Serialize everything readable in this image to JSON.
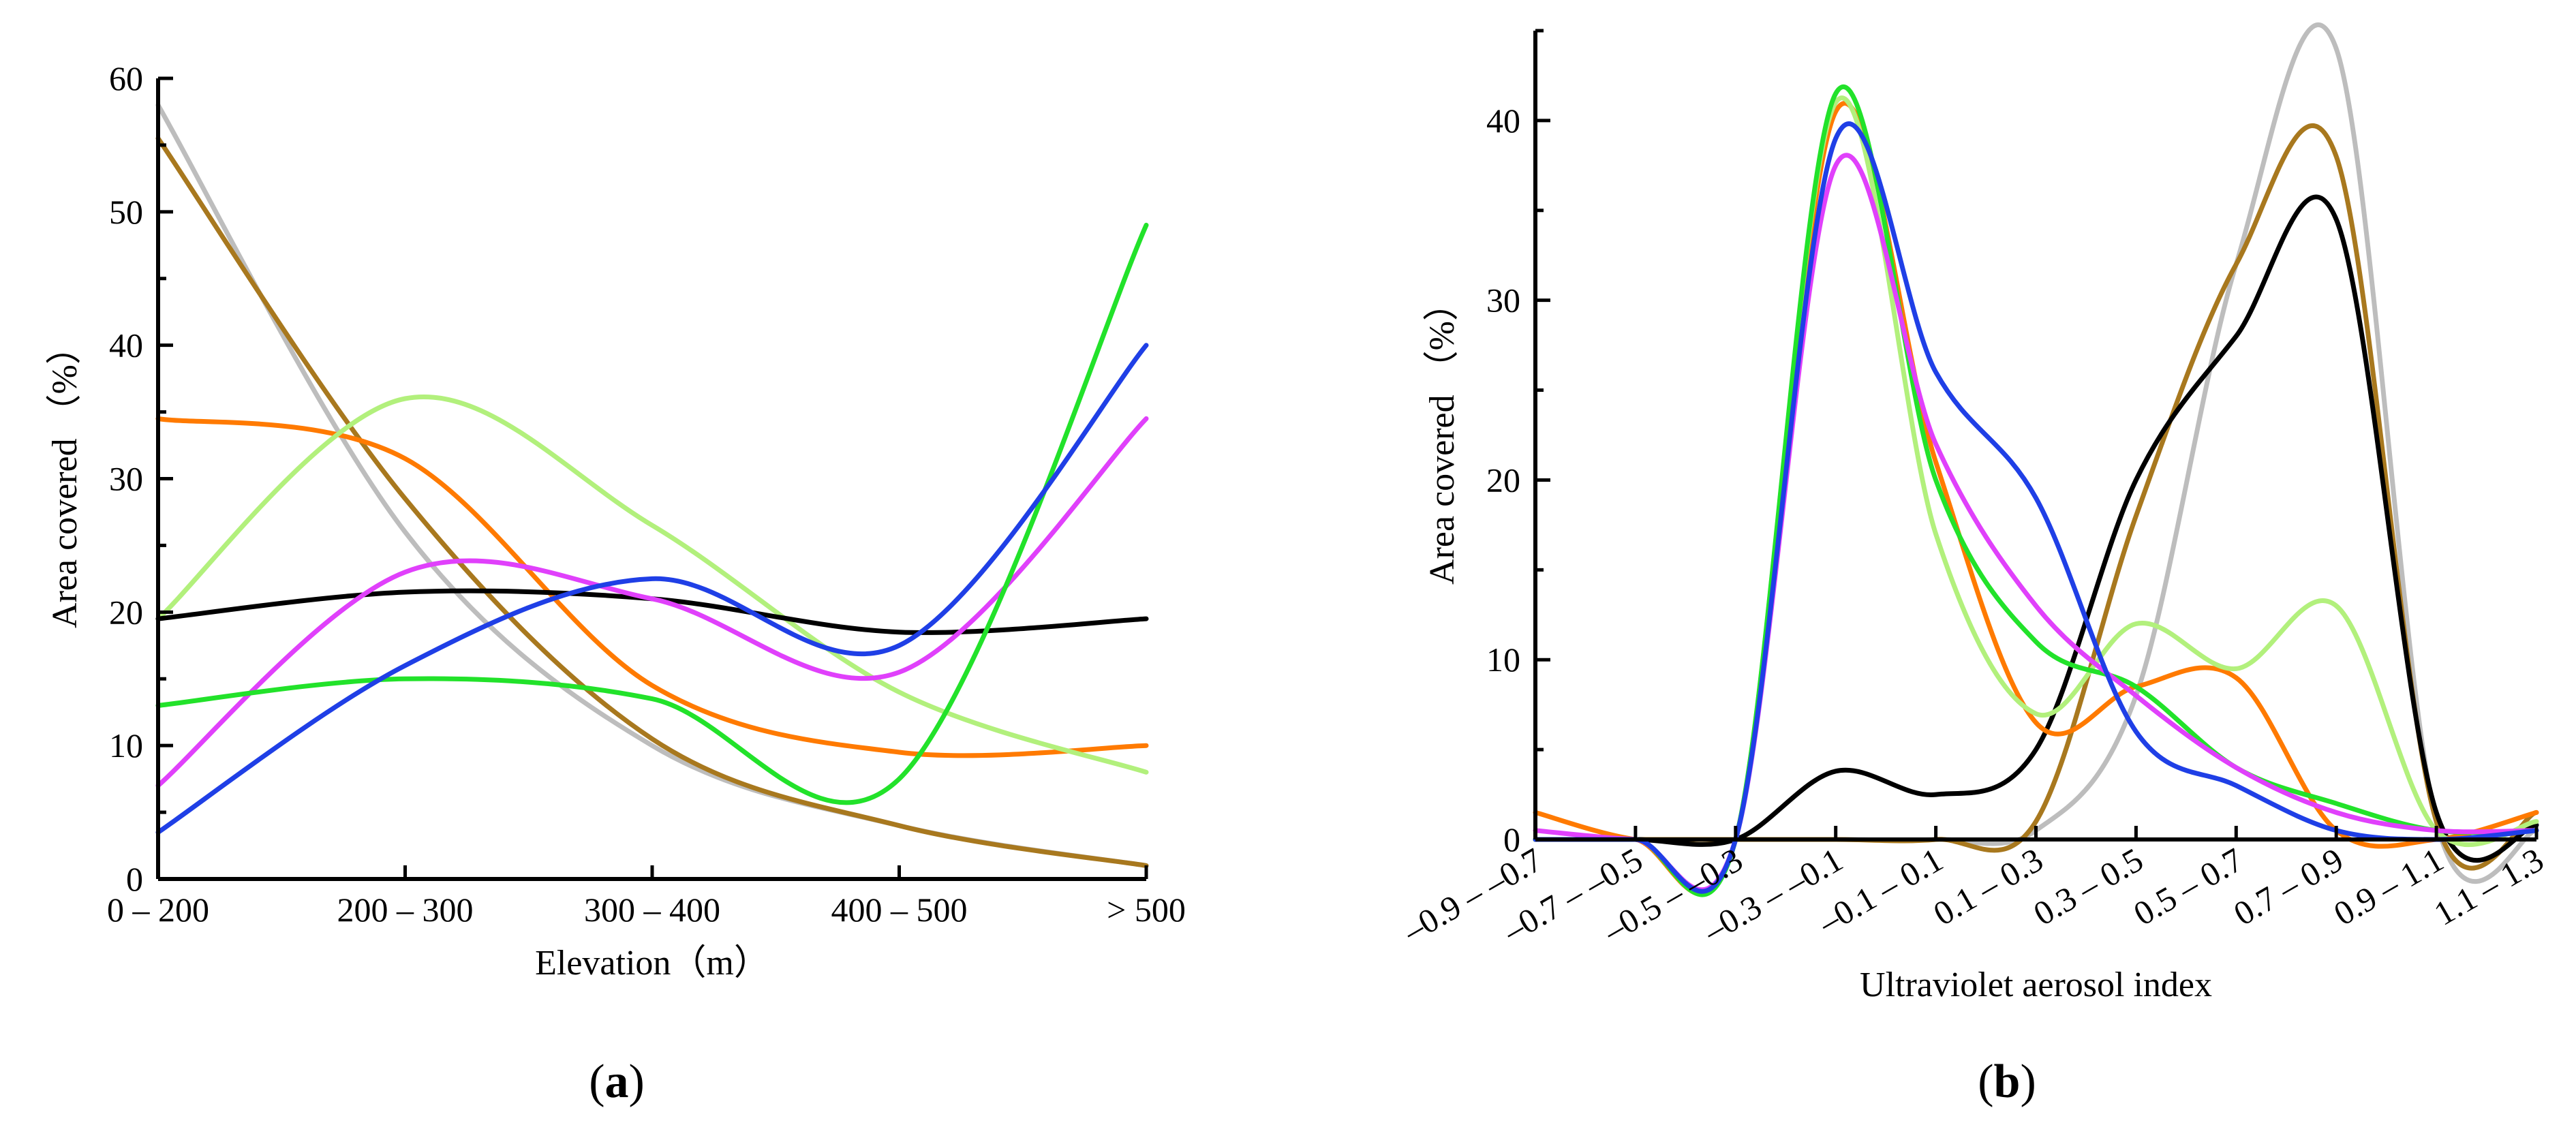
{
  "chart_data": [
    {
      "type": "line",
      "panel": "a",
      "panel_label": "a",
      "xlabel": "Elevation（m）",
      "ylabel": "Area covered （%）",
      "categories": [
        "0 – 200",
        "200 – 300",
        "300 – 400",
        "400 – 500",
        "> 500"
      ],
      "ylim": [
        0,
        60
      ],
      "yticks": [
        "0",
        "10",
        "20",
        "30",
        "40",
        "50",
        "60"
      ],
      "grid": false,
      "legend": "none",
      "series": [
        {
          "name": "gray",
          "color": "#bdbdbd",
          "values": [
            58,
            26,
            10,
            4,
            1
          ]
        },
        {
          "name": "brown",
          "color": "#a8781e",
          "values": [
            55.5,
            28.5,
            10.5,
            4,
            1
          ]
        },
        {
          "name": "orange",
          "color": "#ff7a00",
          "values": [
            34.5,
            31.5,
            14.5,
            9.5,
            10
          ]
        },
        {
          "name": "light-green",
          "color": "#b2f07c",
          "values": [
            19.5,
            36,
            26.5,
            14,
            8
          ]
        },
        {
          "name": "black",
          "color": "#000000",
          "values": [
            19.5,
            21.5,
            21,
            18.5,
            19.5
          ]
        },
        {
          "name": "magenta",
          "color": "#e040fb",
          "values": [
            7,
            23,
            21,
            15.5,
            34.5
          ]
        },
        {
          "name": "green",
          "color": "#22e22a",
          "values": [
            13,
            15,
            13.5,
            7.5,
            49
          ]
        },
        {
          "name": "blue",
          "color": "#1f3fe6",
          "values": [
            3.5,
            16,
            22.5,
            17.5,
            40
          ]
        }
      ]
    },
    {
      "type": "line",
      "panel": "b",
      "panel_label": "b",
      "xlabel": "Ultraviolet aerosol index",
      "ylabel": "Area covered （%）",
      "categories": [
        "–0.9 – –0.7",
        "–0.7 – –0.5",
        "–0.5 – –0.3",
        "–0.3 – –0.1",
        "–0.1 – 0.1",
        "0.1 – 0.3",
        "0.3 – 0.5",
        "0.5 – 0.7",
        "0.7 – 0.9",
        "0.9 – 1.1",
        "1.1 – 1.3"
      ],
      "ylim": [
        0,
        45
      ],
      "yticks": [
        "0",
        "10",
        "20",
        "30",
        "40"
      ],
      "grid": false,
      "legend": "none",
      "series": [
        {
          "name": "gray",
          "color": "#bdbdbd",
          "values": [
            0,
            0,
            0,
            0,
            0,
            0.5,
            8,
            32,
            44,
            1,
            0.5
          ]
        },
        {
          "name": "brown",
          "color": "#a8781e",
          "values": [
            0,
            0,
            0,
            0,
            0,
            1,
            18,
            32,
            38,
            1,
            1.5
          ]
        },
        {
          "name": "black",
          "color": "#000000",
          "values": [
            0,
            0,
            0,
            3.8,
            2.5,
            5,
            20,
            28,
            34.5,
            1.5,
            0.8
          ]
        },
        {
          "name": "orange",
          "color": "#ff7a00",
          "values": [
            1.5,
            0,
            0,
            40.5,
            21,
            6.5,
            8.5,
            9,
            0.5,
            0,
            1.5
          ]
        },
        {
          "name": "light-green",
          "color": "#b2f07c",
          "values": [
            0,
            0,
            0,
            41,
            17,
            7,
            12,
            9.5,
            13,
            0.5,
            1
          ]
        },
        {
          "name": "green",
          "color": "#22e22a",
          "values": [
            0,
            0,
            0,
            41.5,
            20,
            11,
            8.5,
            4,
            2,
            0.5,
            0.5
          ]
        },
        {
          "name": "magenta",
          "color": "#e040fb",
          "values": [
            0.5,
            0,
            0,
            37.5,
            22,
            13,
            8,
            4,
            1.5,
            0.5,
            0.5
          ]
        },
        {
          "name": "blue",
          "color": "#1f3fe6",
          "values": [
            0,
            0,
            0,
            39,
            26,
            19,
            6,
            3,
            0.5,
            0,
            0.5
          ]
        }
      ]
    }
  ]
}
